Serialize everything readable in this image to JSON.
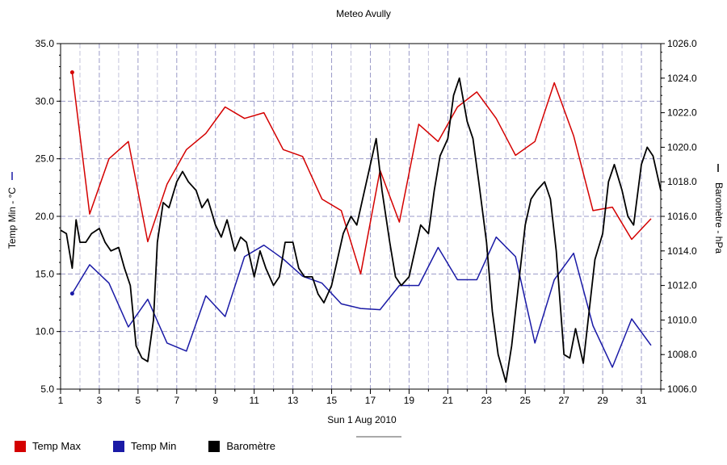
{
  "chart_data": {
    "type": "line",
    "title": "Meteo  Avully",
    "xlabel": "Sun 1 Aug 2010",
    "ylabel_left": "Temp Min - °C",
    "ylabel_right": "Baromètre - hPa",
    "xlim": [
      1,
      32
    ],
    "ylim_left": [
      5,
      35
    ],
    "ylim_right": [
      1006,
      1026
    ],
    "x_ticks": [
      1,
      3,
      5,
      7,
      9,
      11,
      13,
      15,
      17,
      19,
      21,
      23,
      25,
      27,
      29,
      31
    ],
    "y_ticks_left": [
      "5.0",
      "10.0",
      "15.0",
      "20.0",
      "25.0",
      "30.0",
      "35.0"
    ],
    "y_ticks_right": [
      "1006.0",
      "1008.0",
      "1010.0",
      "1012.0",
      "1014.0",
      "1016.0",
      "1018.0",
      "1020.0",
      "1022.0",
      "1024.0",
      "1026.0"
    ],
    "grid": true,
    "legend_position": "bottom-left",
    "series": [
      {
        "name": "Temp Max",
        "color": "#d40000",
        "axis": "left",
        "x": [
          1.6,
          2.5,
          3.5,
          4.5,
          5.5,
          6.5,
          7.5,
          8.5,
          9.5,
          10.5,
          11.5,
          12.5,
          13.5,
          14.5,
          15.5,
          16.5,
          17.5,
          18.5,
          19.5,
          20.5,
          21.5,
          22.5,
          23.5,
          24.5,
          25.5,
          26.5,
          27.5,
          28.5,
          29.5,
          30.5,
          31.5
        ],
        "values": [
          32.5,
          20.2,
          25.0,
          26.5,
          17.8,
          22.8,
          25.8,
          27.2,
          29.5,
          28.5,
          29.0,
          25.8,
          25.2,
          21.5,
          20.5,
          15.0,
          24.0,
          19.5,
          28.0,
          26.5,
          29.5,
          30.8,
          28.5,
          25.3,
          26.5,
          31.6,
          27.0,
          20.5,
          20.8,
          18.0,
          19.8
        ]
      },
      {
        "name": "Temp Min",
        "color": "#1a1aa6",
        "axis": "left",
        "x": [
          1.6,
          2.5,
          3.5,
          4.5,
          5.5,
          6.5,
          7.5,
          8.5,
          9.5,
          10.5,
          11.5,
          12.5,
          13.5,
          14.5,
          15.5,
          16.5,
          17.5,
          18.5,
          19.5,
          20.5,
          21.5,
          22.5,
          23.5,
          24.5,
          25.5,
          26.5,
          27.5,
          28.5,
          29.5,
          30.5,
          31.5
        ],
        "values": [
          13.3,
          15.8,
          14.2,
          10.4,
          12.8,
          9.0,
          8.3,
          13.1,
          11.3,
          16.5,
          17.5,
          16.3,
          14.8,
          14.2,
          12.4,
          12.0,
          11.9,
          14.0,
          14.0,
          17.3,
          14.5,
          14.5,
          18.2,
          16.5,
          9.0,
          14.5,
          16.8,
          10.5,
          6.9,
          11.1,
          8.8
        ]
      },
      {
        "name": "Baromètre",
        "color": "#000000",
        "axis": "right",
        "x": [
          1.0,
          1.3,
          1.6,
          1.8,
          2.0,
          2.3,
          2.6,
          3.0,
          3.3,
          3.6,
          4.0,
          4.3,
          4.6,
          4.9,
          5.2,
          5.5,
          5.8,
          6.0,
          6.3,
          6.6,
          7.0,
          7.3,
          7.6,
          8.0,
          8.3,
          8.6,
          9.0,
          9.3,
          9.6,
          10.0,
          10.3,
          10.6,
          11.0,
          11.3,
          11.6,
          12.0,
          12.3,
          12.6,
          13.0,
          13.3,
          13.6,
          14.0,
          14.3,
          14.6,
          15.0,
          15.3,
          15.6,
          16.0,
          16.3,
          16.6,
          17.0,
          17.3,
          17.6,
          18.0,
          18.3,
          18.6,
          19.0,
          19.3,
          19.6,
          20.0,
          20.3,
          20.6,
          21.0,
          21.3,
          21.6,
          22.0,
          22.3,
          22.6,
          23.0,
          23.3,
          23.6,
          24.0,
          24.3,
          24.6,
          25.0,
          25.3,
          25.6,
          26.0,
          26.3,
          26.6,
          27.0,
          27.3,
          27.6,
          28.0,
          28.3,
          28.6,
          29.0,
          29.3,
          29.6,
          30.0,
          30.3,
          30.6,
          31.0,
          31.3,
          31.6,
          32.0
        ],
        "values": [
          1015.2,
          1015.0,
          1013.0,
          1015.8,
          1014.5,
          1014.5,
          1015.0,
          1015.3,
          1014.5,
          1014.0,
          1014.2,
          1013.0,
          1012.0,
          1008.5,
          1007.8,
          1007.6,
          1010.0,
          1014.5,
          1016.8,
          1016.5,
          1018.0,
          1018.6,
          1018.0,
          1017.5,
          1016.5,
          1017.0,
          1015.5,
          1014.8,
          1015.8,
          1014.0,
          1014.8,
          1014.5,
          1012.5,
          1014.0,
          1013.0,
          1012.0,
          1012.5,
          1014.5,
          1014.5,
          1013.0,
          1012.5,
          1012.5,
          1011.5,
          1011.0,
          1012.0,
          1013.5,
          1015.0,
          1016.0,
          1015.5,
          1017.0,
          1019.0,
          1020.5,
          1017.5,
          1014.5,
          1012.5,
          1012.0,
          1012.5,
          1014.0,
          1015.5,
          1015.0,
          1017.5,
          1019.5,
          1020.5,
          1023.0,
          1024.0,
          1021.5,
          1020.5,
          1018.0,
          1014.5,
          1010.5,
          1008.0,
          1006.4,
          1008.5,
          1011.5,
          1015.5,
          1017.0,
          1017.5,
          1018.0,
          1017.0,
          1014.0,
          1008.0,
          1007.8,
          1009.5,
          1007.5,
          1010.5,
          1013.5,
          1015.0,
          1018.0,
          1019.0,
          1017.5,
          1016.0,
          1015.5,
          1019.0,
          1020.0,
          1019.5,
          1017.5
        ]
      }
    ]
  }
}
